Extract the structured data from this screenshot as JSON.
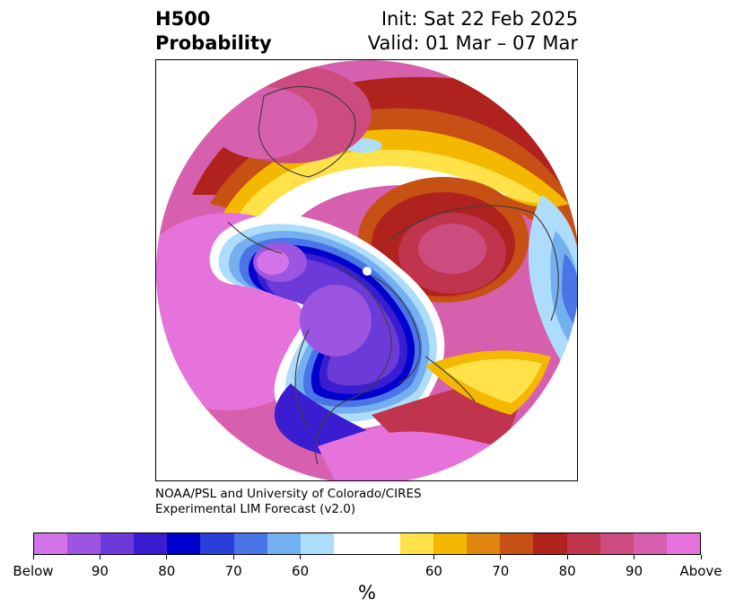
{
  "title": {
    "field": "H500",
    "product": "Probability",
    "init": "Init: Sat 22 Feb 2025",
    "valid": "Valid: 01 Mar – 07 Mar"
  },
  "credit": {
    "line1": "NOAA/PSL and University of Colorado/CIRES",
    "line2": "Experimental LIM Forecast (v2.0)"
  },
  "colorbar": {
    "unit": "%",
    "segments": [
      "#d373e8",
      "#9b55e0",
      "#6b3ad8",
      "#3a1dd0",
      "#0000cc",
      "#2a3ed8",
      "#4a75e6",
      "#74b0f0",
      "#aedcfb",
      "#ffffff",
      "#ffe14a",
      "#f5b800",
      "#e0860f",
      "#c75015",
      "#b0221e",
      "#c0344e",
      "#cc4c80",
      "#d760ae",
      "#e673dc"
    ],
    "tick_labels": [
      "Below",
      "90",
      "80",
      "70",
      "60",
      "60",
      "70",
      "80",
      "90",
      "Above"
    ]
  },
  "colors": {
    "below_max": "#e673dc",
    "below_strong": "#0000cc",
    "neutral": "#ffffff",
    "above_strong": "#b0221e",
    "above_max": "#e673dc",
    "land_outline": "#404040"
  }
}
